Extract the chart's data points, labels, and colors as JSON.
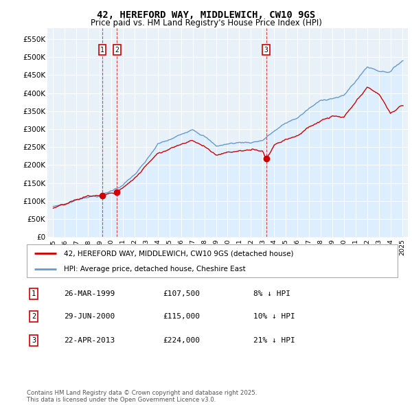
{
  "title": "42, HEREFORD WAY, MIDDLEWICH, CW10 9GS",
  "subtitle": "Price paid vs. HM Land Registry's House Price Index (HPI)",
  "legend_line1": "42, HEREFORD WAY, MIDDLEWICH, CW10 9GS (detached house)",
  "legend_line2": "HPI: Average price, detached house, Cheshire East",
  "footer": "Contains HM Land Registry data © Crown copyright and database right 2025.\nThis data is licensed under the Open Government Licence v3.0.",
  "transactions": [
    {
      "num": 1,
      "date": "26-MAR-1999",
      "price": "£107,500",
      "note": "8% ↓ HPI",
      "year": 1999.23
    },
    {
      "num": 2,
      "date": "29-JUN-2000",
      "price": "£115,000",
      "note": "10% ↓ HPI",
      "year": 2000.49
    },
    {
      "num": 3,
      "date": "22-APR-2013",
      "price": "£224,000",
      "note": "21% ↓ HPI",
      "year": 2013.31
    }
  ],
  "property_color": "#cc0000",
  "hpi_color": "#6699cc",
  "hpi_fill_color": "#ddeeff",
  "background_color": "#ffffff",
  "plot_bg": "#e8f0f8",
  "ylim": [
    0,
    580000
  ],
  "xlim": [
    1994.5,
    2025.5
  ],
  "yticks": [
    0,
    50000,
    100000,
    150000,
    200000,
    250000,
    300000,
    350000,
    400000,
    450000,
    500000,
    550000
  ],
  "ytick_labels": [
    "£0",
    "£50K",
    "£100K",
    "£150K",
    "£200K",
    "£250K",
    "£300K",
    "£350K",
    "£400K",
    "£450K",
    "£500K",
    "£550K"
  ],
  "xticks": [
    1995,
    1996,
    1997,
    1998,
    1999,
    2000,
    2001,
    2002,
    2003,
    2004,
    2005,
    2006,
    2007,
    2008,
    2009,
    2010,
    2011,
    2012,
    2013,
    2014,
    2015,
    2016,
    2017,
    2018,
    2019,
    2020,
    2021,
    2022,
    2023,
    2024,
    2025
  ]
}
